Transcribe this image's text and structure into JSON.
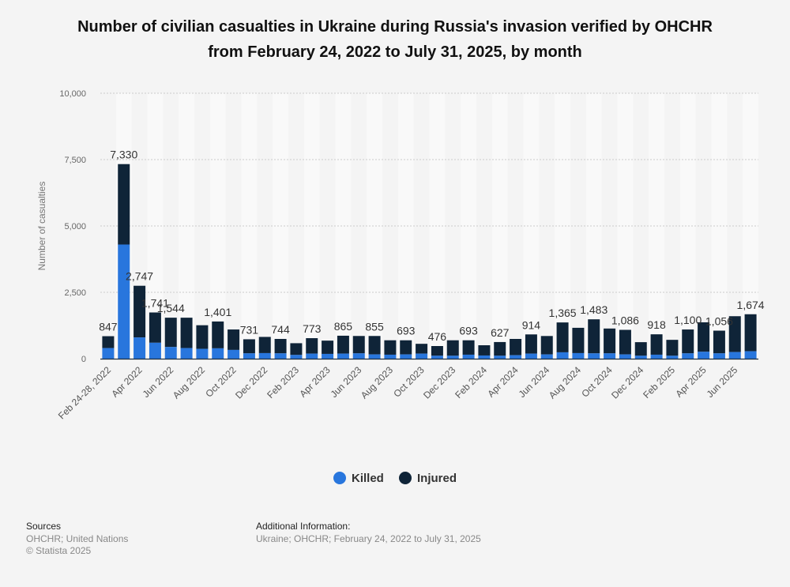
{
  "title_line1": "Number of civilian casualties in Ukraine during Russia's invasion verified by OHCHR",
  "title_line2": "from February 24, 2022 to July 31, 2025, by month",
  "legend": {
    "killed": "Killed",
    "injured": "Injured"
  },
  "sources": {
    "heading": "Sources",
    "line1": "OHCHR; United Nations",
    "line2": "© Statista 2025"
  },
  "additional": {
    "heading": "Additional Information:",
    "line1": "Ukraine; OHCHR; February 24, 2022 to July 31, 2025"
  },
  "colors": {
    "killed": "#2876dd",
    "injured": "#0f2438",
    "grid": "#cccccc",
    "band": "#f9f9f9",
    "background": "#f4f4f4"
  },
  "chart_data": {
    "type": "bar",
    "stacked": true,
    "title": "Number of civilian casualties in Ukraine during Russia's invasion verified by OHCHR from February 24, 2022 to July 31, 2025, by month",
    "ylabel": "Number of casualties",
    "ylim": [
      0,
      10000
    ],
    "yticks": [
      0,
      2500,
      5000,
      7500,
      10000
    ],
    "ytick_labels": [
      "0",
      "2,500",
      "5,000",
      "7,500",
      "10,000"
    ],
    "legend_position": "bottom",
    "grid": true,
    "categories": [
      "Feb 24-28, 2022",
      "Mar 2022",
      "Apr 2022",
      "May 2022",
      "Jun 2022",
      "Jul 2022",
      "Aug 2022",
      "Sep 2022",
      "Oct 2022",
      "Nov 2022",
      "Dec 2022",
      "Jan 2023",
      "Feb 2023",
      "Mar 2023",
      "Apr 2023",
      "May 2023",
      "Jun 2023",
      "Jul 2023",
      "Aug 2023",
      "Sep 2023",
      "Oct 2023",
      "Nov 2023",
      "Dec 2023",
      "Jan 2024",
      "Feb 2024",
      "Mar 2024",
      "Apr 2024",
      "May 2024",
      "Jun 2024",
      "Jul 2024",
      "Aug 2024",
      "Sep 2024",
      "Oct 2024",
      "Nov 2024",
      "Dec 2024",
      "Jan 2025",
      "Feb 2025",
      "Mar 2025",
      "Apr 2025",
      "May 2025",
      "Jun 2025",
      "Jul 2025"
    ],
    "x_tick_labels": [
      "Feb 24-28, 2022",
      "",
      "Apr 2022",
      "",
      "Jun 2022",
      "",
      "Aug 2022",
      "",
      "Oct 2022",
      "",
      "Dec 2022",
      "",
      "Feb 2023",
      "",
      "Apr 2023",
      "",
      "Jun 2023",
      "",
      "Aug 2023",
      "",
      "Oct 2023",
      "",
      "Dec 2023",
      "",
      "Feb 2024",
      "",
      "Apr 2024",
      "",
      "Jun 2024",
      "",
      "Aug 2024",
      "",
      "Oct 2024",
      "",
      "Dec 2024",
      "",
      "Feb 2025",
      "",
      "Apr 2025",
      "",
      "Jun 2025",
      ""
    ],
    "total_labels": [
      "847",
      "7,330",
      "2,747",
      "1,741",
      "1,544",
      "",
      "",
      "1,401",
      "",
      "731",
      "",
      "744",
      "",
      "773",
      "",
      "865",
      "",
      "855",
      "",
      "693",
      "",
      "476",
      "",
      "693",
      "",
      "627",
      "",
      "914",
      "",
      "1,365",
      "",
      "1,483",
      "",
      "1,086",
      "",
      "918",
      "",
      "1,100",
      "",
      "1,056",
      "",
      "1,674"
    ],
    "series": [
      {
        "name": "Killed",
        "values": [
          400,
          4300,
          800,
          600,
          440,
          400,
          370,
          390,
          330,
          200,
          210,
          200,
          140,
          190,
          180,
          190,
          200,
          160,
          150,
          160,
          190,
          110,
          110,
          150,
          120,
          110,
          130,
          190,
          160,
          240,
          210,
          200,
          200,
          160,
          110,
          150,
          110,
          200,
          260,
          200,
          250,
          280
        ]
      },
      {
        "name": "Injured",
        "values": [
          447,
          3030,
          1947,
          1141,
          1104,
          1144,
          890,
          1011,
          770,
          531,
          610,
          544,
          443,
          583,
          500,
          675,
          655,
          695,
          543,
          533,
          370,
          366,
          583,
          543,
          386,
          517,
          614,
          724,
          694,
          1125,
          953,
          1283,
          936,
          926,
          512,
          768,
          600,
          900,
          1110,
          856,
          1350,
          1394
        ]
      }
    ]
  }
}
